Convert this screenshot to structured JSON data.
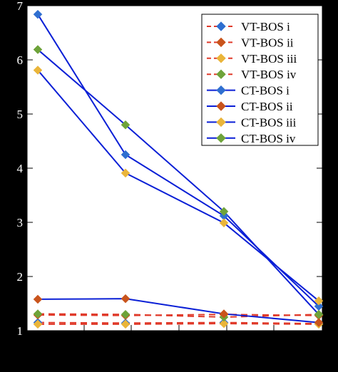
{
  "chart_data": {
    "type": "line",
    "x": [
      1,
      2,
      3,
      4
    ],
    "xlim": [
      1,
      4
    ],
    "ylim": [
      1,
      7
    ],
    "yticks": [
      "1",
      "2",
      "3",
      "4",
      "5",
      "6",
      "7"
    ],
    "grid": false,
    "legend_position": "top-right",
    "series": [
      {
        "name": "VT-BOS i",
        "color": "#2f6fd0",
        "line_color": "#e03a2a",
        "dashed": true,
        "values": [
          1.15,
          1.14,
          1.15,
          1.13
        ]
      },
      {
        "name": "VT-BOS ii",
        "color": "#c9541c",
        "line_color": "#e03a2a",
        "dashed": true,
        "values": [
          1.29,
          1.28,
          1.3,
          1.28
        ]
      },
      {
        "name": "VT-BOS iii",
        "color": "#eab53a",
        "line_color": "#e03a2a",
        "dashed": true,
        "values": [
          1.12,
          1.12,
          1.13,
          1.12
        ]
      },
      {
        "name": "VT-BOS iv",
        "color": "#6ea33a",
        "line_color": "#e03a2a",
        "dashed": true,
        "values": [
          1.31,
          1.3,
          1.25,
          1.3
        ]
      },
      {
        "name": "CT-BOS i",
        "color": "#2f6fd0",
        "line_color": "#0a1fd6",
        "dashed": false,
        "values": [
          6.84,
          4.25,
          3.12,
          1.45
        ]
      },
      {
        "name": "CT-BOS ii",
        "color": "#c9541c",
        "line_color": "#0a1fd6",
        "dashed": false,
        "values": [
          1.58,
          1.59,
          1.31,
          1.15
        ]
      },
      {
        "name": "CT-BOS iii",
        "color": "#eab53a",
        "line_color": "#0a1fd6",
        "dashed": false,
        "values": [
          5.81,
          3.91,
          2.99,
          1.55
        ]
      },
      {
        "name": "CT-BOS iv",
        "color": "#6ea33a",
        "line_color": "#0a1fd6",
        "dashed": false,
        "values": [
          6.19,
          4.8,
          3.2,
          1.3
        ]
      }
    ]
  }
}
